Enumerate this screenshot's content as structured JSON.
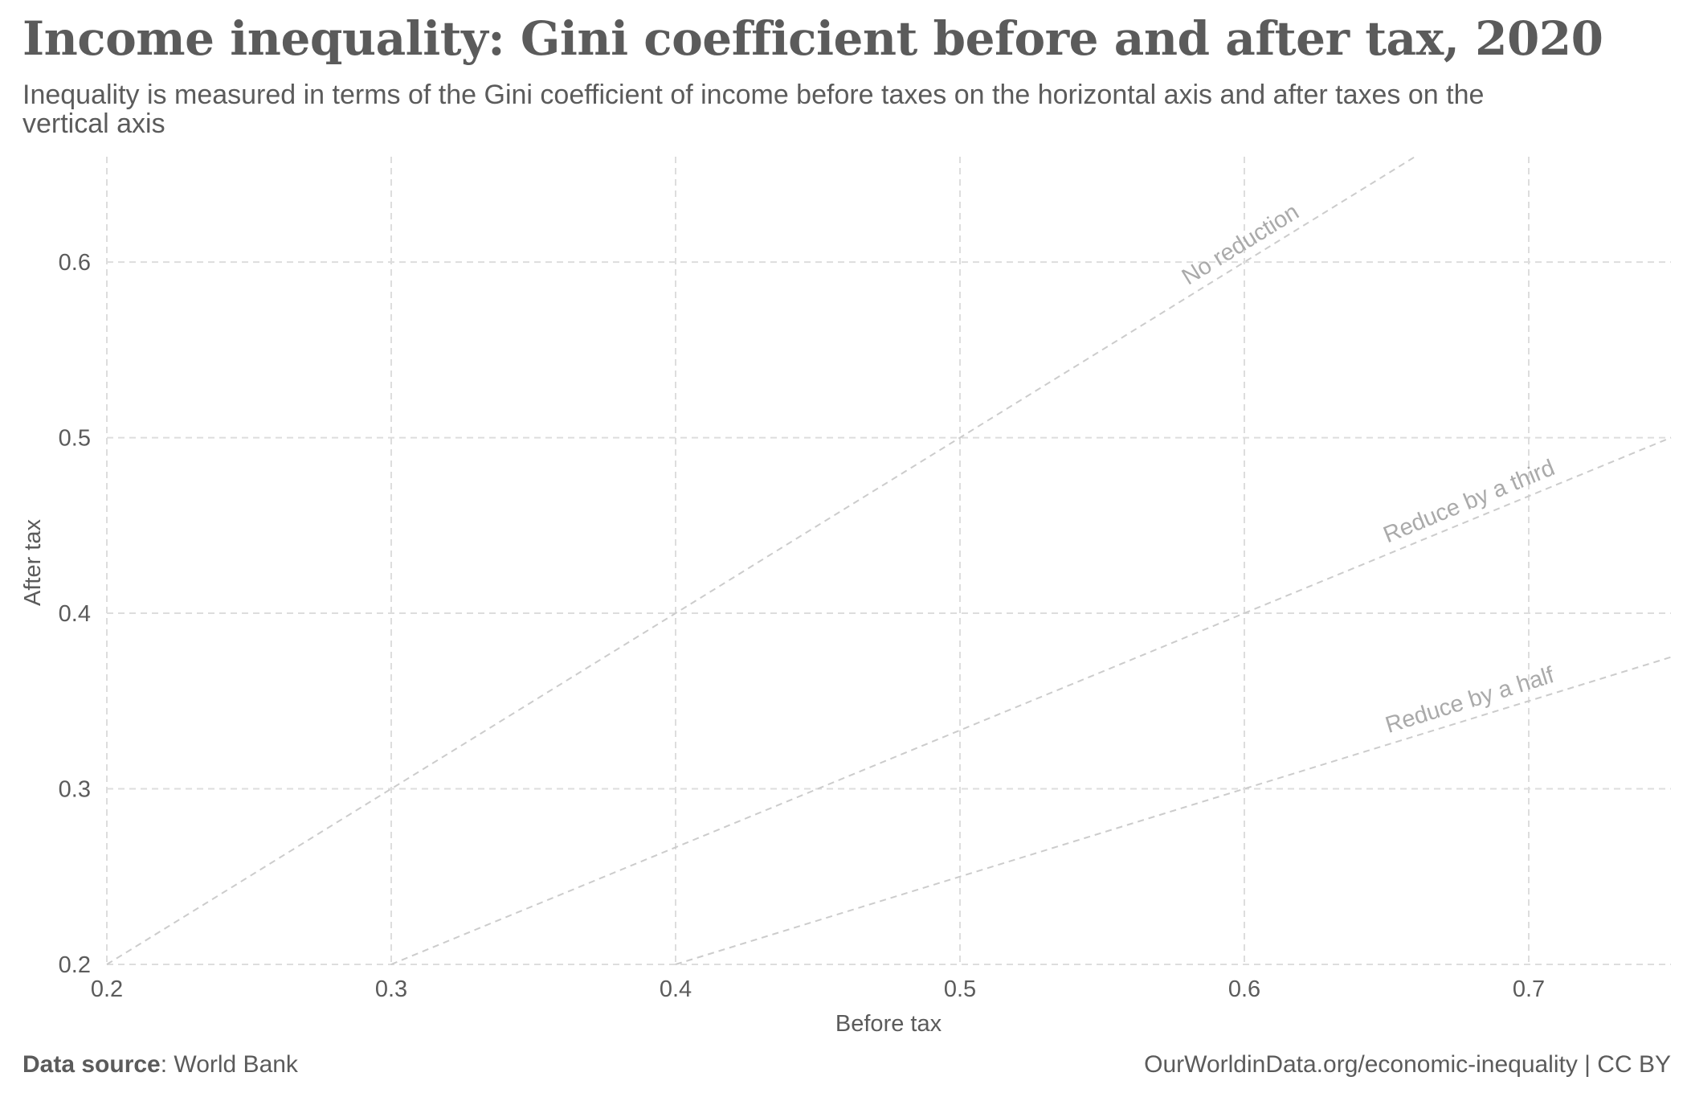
{
  "title": "Income inequality: Gini coefficient before and after tax, 2020",
  "subtitle": "Inequality is measured in terms of the Gini coefficient of income before taxes on the horizontal axis and after taxes on the vertical axis",
  "footer": {
    "source_label": "Data source",
    "source_value": "World Bank",
    "license": "OurWorldinData.org/economic-inequality | CC BY"
  },
  "chart_data": {
    "type": "scatter",
    "xlabel": "Before tax",
    "ylabel": "After tax",
    "xlim": [
      0.2,
      0.75
    ],
    "ylim": [
      0.2,
      0.66
    ],
    "x_ticks": [
      0.2,
      0.3,
      0.4,
      0.5,
      0.6,
      0.7
    ],
    "y_ticks": [
      0.2,
      0.3,
      0.4,
      0.5,
      0.6
    ],
    "x_tick_labels": [
      "0.2",
      "0.3",
      "0.4",
      "0.5",
      "0.6",
      "0.7"
    ],
    "y_tick_labels": [
      "0.2",
      "0.3",
      "0.4",
      "0.5",
      "0.6"
    ],
    "grid": true,
    "points": [],
    "reference_lines": [
      {
        "label": "No reduction",
        "slope": 1.0,
        "x_end": 0.66,
        "label_x": 0.6
      },
      {
        "label": "Reduce by a third",
        "slope": 0.6667,
        "x_end": 0.75,
        "label_x": 0.68
      },
      {
        "label": "Reduce by a half",
        "slope": 0.5,
        "x_end": 0.75,
        "label_x": 0.68
      }
    ],
    "colors": {
      "grid": "#dddddd",
      "reference_line": "#cccccc",
      "reference_label": "#aaaaaa",
      "text": "#5b5b5b"
    }
  }
}
